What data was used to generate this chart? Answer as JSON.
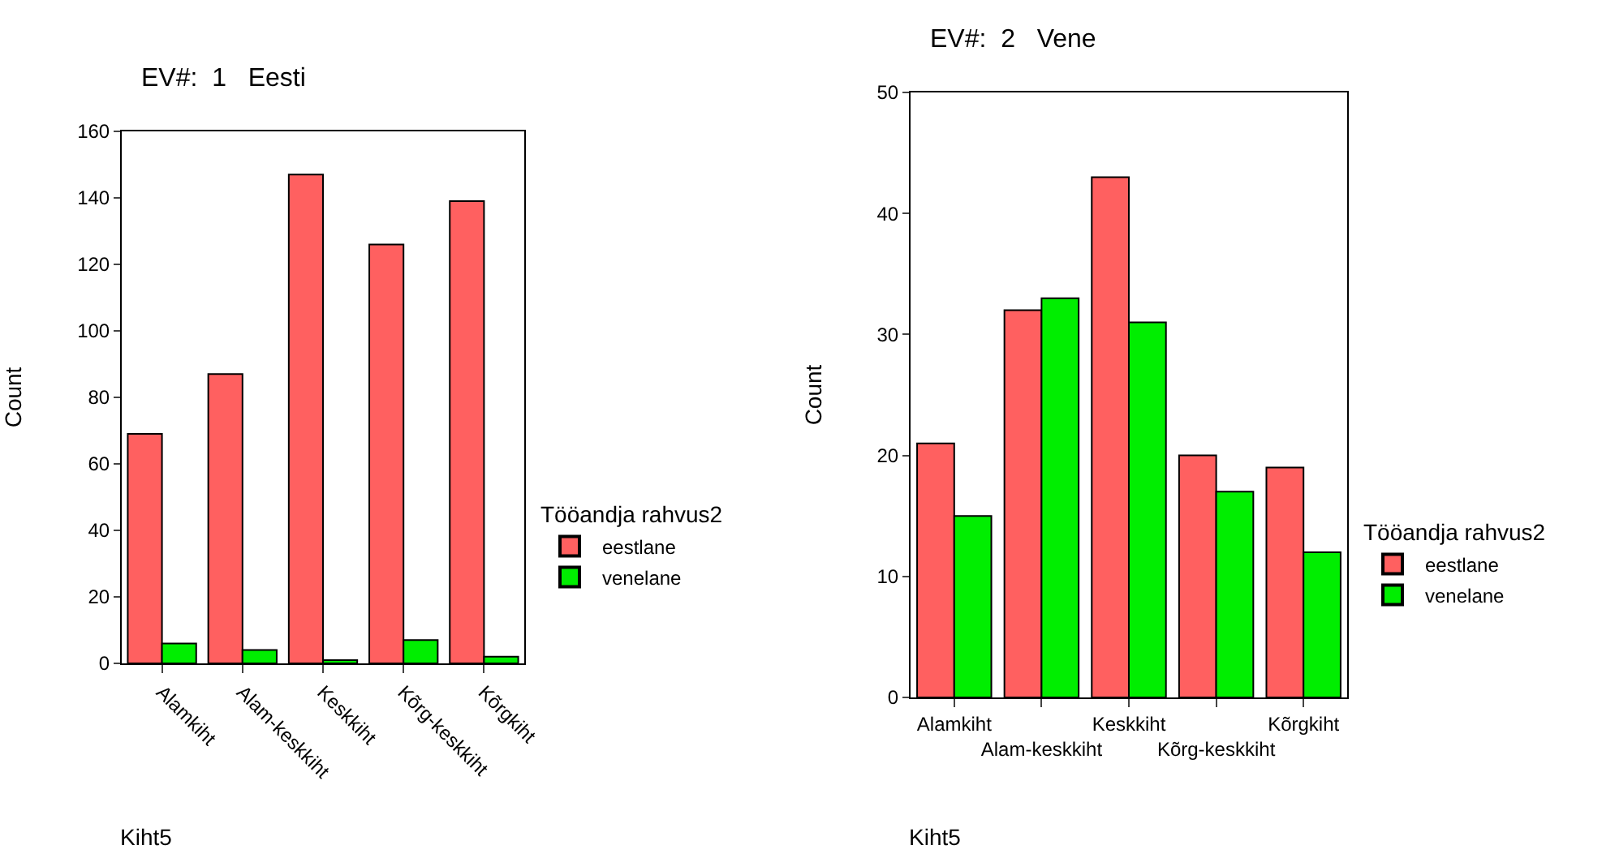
{
  "chart_data": [
    {
      "type": "bar",
      "title": "EV#:  1   Eesti",
      "xlabel": "Kiht5",
      "ylabel": "Count",
      "legend_title": "Tööandja rahvus2",
      "legend": "right",
      "categories": [
        "Alamkiht",
        "Alam-keskkiht",
        "Keskkiht",
        "Kõrg-keskkiht",
        "Kõrgkiht"
      ],
      "ylim": [
        0,
        160
      ],
      "yticks": [
        0,
        20,
        40,
        60,
        80,
        100,
        120,
        140,
        160
      ],
      "series": [
        {
          "name": "eestlane",
          "color": "#ff6060",
          "values": [
            69,
            87,
            147,
            126,
            139
          ]
        },
        {
          "name": "venelane",
          "color": "#00ee00",
          "values": [
            6,
            4,
            1,
            7,
            2
          ]
        }
      ]
    },
    {
      "type": "bar",
      "title": "EV#:  2   Vene",
      "xlabel": "Kiht5",
      "ylabel": "Count",
      "legend_title": "Tööandja rahvus2",
      "legend": "right",
      "categories": [
        "Alamkiht",
        "Alam-keskkiht",
        "Keskkiht",
        "Kõrg-keskkiht",
        "Kõrgkiht"
      ],
      "ylim": [
        0,
        50
      ],
      "yticks": [
        0,
        10,
        20,
        30,
        40,
        50
      ],
      "series": [
        {
          "name": "eestlane",
          "color": "#ff6060",
          "values": [
            21,
            32,
            43,
            20,
            19
          ]
        },
        {
          "name": "venelane",
          "color": "#00ee00",
          "values": [
            15,
            33,
            31,
            17,
            12
          ]
        }
      ]
    }
  ]
}
